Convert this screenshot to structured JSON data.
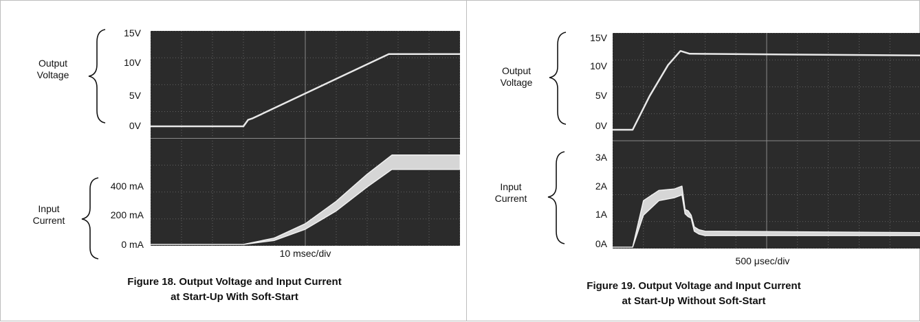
{
  "charts": [
    {
      "id": "fig18",
      "caption_line1": "Figure 18. Output Voltage and Input Current",
      "caption_line2": "at Start-Up With Soft-Start",
      "x_label": "10 msec/div",
      "upper_group": [
        "Output",
        "Voltage"
      ],
      "lower_group": [
        "Input",
        "Current"
      ],
      "upper_ticks": [
        "15V",
        "10V",
        "5V",
        "0V"
      ],
      "lower_ticks": [
        "400 mA",
        "200 mA",
        "0 mA"
      ]
    },
    {
      "id": "fig19",
      "caption_line1": "Figure 19. Output Voltage and Input Current",
      "caption_line2": "at Start-Up Without Soft-Start",
      "x_label": "500 μsec/div",
      "upper_group": [
        "Output",
        "Voltage"
      ],
      "lower_group": [
        "Input",
        "Current"
      ],
      "upper_ticks": [
        "15V",
        "10V",
        "5V",
        "0V"
      ],
      "lower_ticks": [
        "3A",
        "2A",
        "1A",
        "0A"
      ]
    }
  ],
  "chart_data": [
    {
      "type": "line",
      "title": "Figure 18. Output Voltage and Input Current at Start-Up With Soft-Start",
      "xlabel": "10 msec/div",
      "x_units": "div",
      "xlim": [
        0,
        10
      ],
      "series": [
        {
          "name": "Output Voltage",
          "unit": "V",
          "x": [
            0,
            3.0,
            3.15,
            3.3,
            7.7,
            10
          ],
          "values": [
            0,
            0,
            1.2,
            1.5,
            13.5,
            13.5
          ]
        },
        {
          "name": "Input Current",
          "unit": "mA",
          "x": [
            0,
            3.0,
            4.0,
            5.0,
            6.0,
            7.0,
            7.8,
            10
          ],
          "values": [
            0,
            0,
            25,
            95,
            210,
            360,
            470,
            470
          ],
          "values_upper": [
            0,
            0,
            40,
            130,
            270,
            440,
            560,
            560
          ]
        }
      ],
      "upper_ylim": [
        0,
        15
      ],
      "lower_ylim": [
        0,
        400
      ]
    },
    {
      "type": "line",
      "title": "Figure 19. Output Voltage and Input Current at Start-Up Without Soft-Start",
      "xlabel": "500 μsec/div",
      "x_units": "div",
      "xlim": [
        0,
        10
      ],
      "series": [
        {
          "name": "Output Voltage",
          "unit": "V",
          "x": [
            0,
            0.3,
            0.65,
            1.2,
            1.8,
            2.2,
            2.5,
            10
          ],
          "values": [
            0,
            0,
            0,
            6,
            11.5,
            14,
            13.5,
            13.2
          ]
        },
        {
          "name": "Input Current",
          "unit": "A",
          "x": [
            0,
            0.3,
            0.65,
            1.0,
            1.5,
            2.0,
            2.25,
            2.35,
            2.45,
            2.55,
            2.65,
            2.8,
            3.0,
            10
          ],
          "values": [
            0,
            0,
            0,
            1.6,
            1.95,
            2.0,
            2.1,
            1.3,
            1.25,
            1.1,
            0.7,
            0.6,
            0.55,
            0.5
          ],
          "values_lower": [
            0,
            0,
            0,
            1.1,
            1.6,
            1.7,
            1.8,
            1.15,
            1.05,
            1.0,
            0.55,
            0.45,
            0.4,
            0.4
          ]
        }
      ],
      "upper_ylim": [
        0,
        15
      ],
      "lower_ylim": [
        0,
        3
      ]
    }
  ]
}
